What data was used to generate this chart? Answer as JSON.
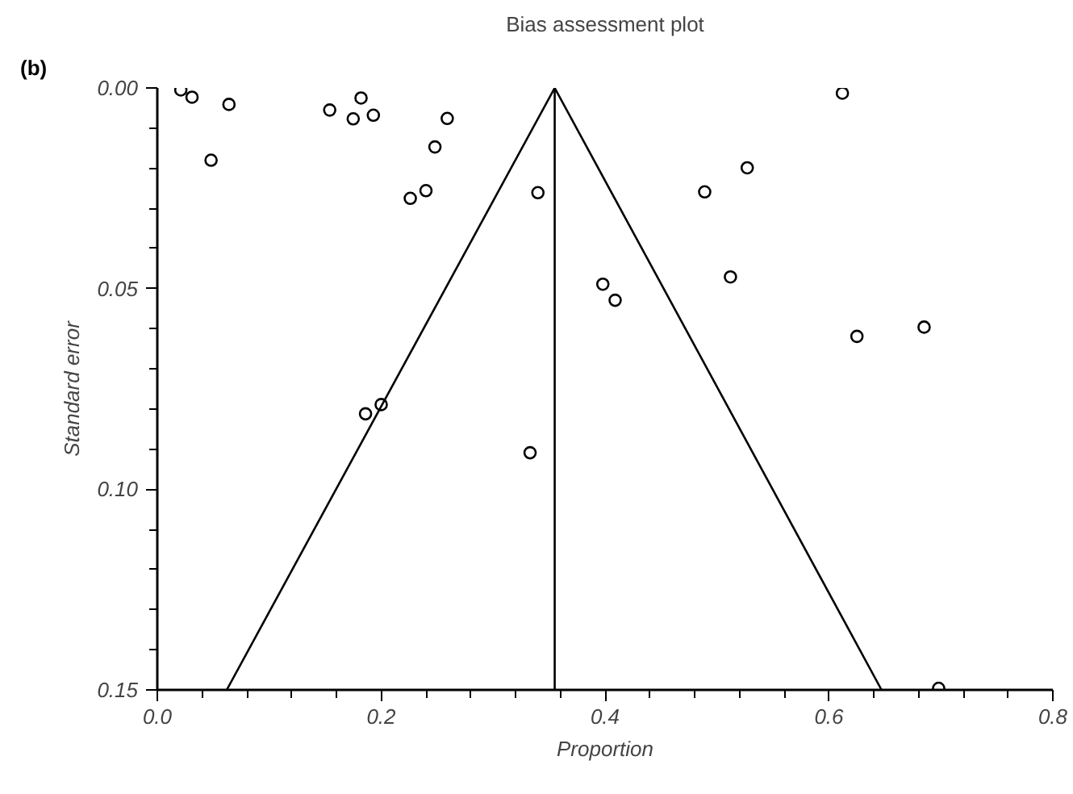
{
  "chart_data": {
    "type": "scatter",
    "title": "Bias assessment plot",
    "xlabel": "Proportion",
    "ylabel": "Standard error",
    "annotations": [
      "(b)"
    ],
    "series": [
      {
        "color": "#000000",
        "marker": "circle",
        "x": [
          0.021,
          0.031,
          0.064,
          0.048,
          0.154,
          0.182,
          0.175,
          0.193,
          0.259,
          0.248,
          0.24,
          0.226,
          0.34,
          0.612,
          0.527,
          0.489,
          0.398,
          0.409,
          0.512,
          0.625,
          0.685,
          0.186,
          0.2,
          0.333,
          0.698
        ],
        "values": [
          0.0005,
          0.0023,
          0.0041,
          0.018,
          0.0055,
          0.0025,
          0.0077,
          0.0068,
          0.0076,
          0.0147,
          0.0256,
          0.0275,
          0.0261,
          0.0013,
          0.0199,
          0.0259,
          0.0489,
          0.0529,
          0.0471,
          0.0619,
          0.0596,
          0.0812,
          0.0789,
          0.0909,
          0.1496
        ]
      },
      {
        "type": "line",
        "color": "#000000",
        "line_style": "solid",
        "x": [
          0.062,
          0.355,
          0.647
        ],
        "values": [
          0.15,
          0,
          0.15
        ]
      }
    ],
    "ref_lines": [
      {
        "axis": "x",
        "value": 0.355,
        "color": "#000000",
        "line_style": "solid"
      }
    ],
    "xlim": [
      0,
      0.8
    ],
    "ylim": [
      0.15,
      0
    ],
    "xticks": [
      {
        "value": 0,
        "label": "0.0"
      },
      {
        "value": 0.04,
        "label": null
      },
      {
        "value": 0.08,
        "label": null
      },
      {
        "value": 0.12,
        "label": null
      },
      {
        "value": 0.16,
        "label": null
      },
      {
        "value": 0.2,
        "label": "0.2"
      },
      {
        "value": 0.24,
        "label": null
      },
      {
        "value": 0.28,
        "label": null
      },
      {
        "value": 0.32,
        "label": null
      },
      {
        "value": 0.36,
        "label": null
      },
      {
        "value": 0.4,
        "label": "0.4"
      },
      {
        "value": 0.44,
        "label": null
      },
      {
        "value": 0.48,
        "label": null
      },
      {
        "value": 0.52,
        "label": null
      },
      {
        "value": 0.56,
        "label": null
      },
      {
        "value": 0.6,
        "label": "0.6"
      },
      {
        "value": 0.64,
        "label": null
      },
      {
        "value": 0.68,
        "label": null
      },
      {
        "value": 0.72,
        "label": null
      },
      {
        "value": 0.76,
        "label": null
      },
      {
        "value": 0.8,
        "label": "0.8"
      }
    ],
    "yticks": [
      {
        "value": 0,
        "label": "0.00"
      },
      {
        "value": 0.01,
        "label": null
      },
      {
        "value": 0.02,
        "label": null
      },
      {
        "value": 0.03,
        "label": null
      },
      {
        "value": 0.04,
        "label": null
      },
      {
        "value": 0.05,
        "label": "0.05"
      },
      {
        "value": 0.06,
        "label": null
      },
      {
        "value": 0.07,
        "label": null
      },
      {
        "value": 0.08,
        "label": null
      },
      {
        "value": 0.09,
        "label": null
      },
      {
        "value": 0.1,
        "label": "0.10"
      },
      {
        "value": 0.11,
        "label": null
      },
      {
        "value": 0.12,
        "label": null
      },
      {
        "value": 0.13,
        "label": null
      },
      {
        "value": 0.14,
        "label": null
      },
      {
        "value": 0.15,
        "label": "0.15"
      }
    ],
    "grid": false
  }
}
